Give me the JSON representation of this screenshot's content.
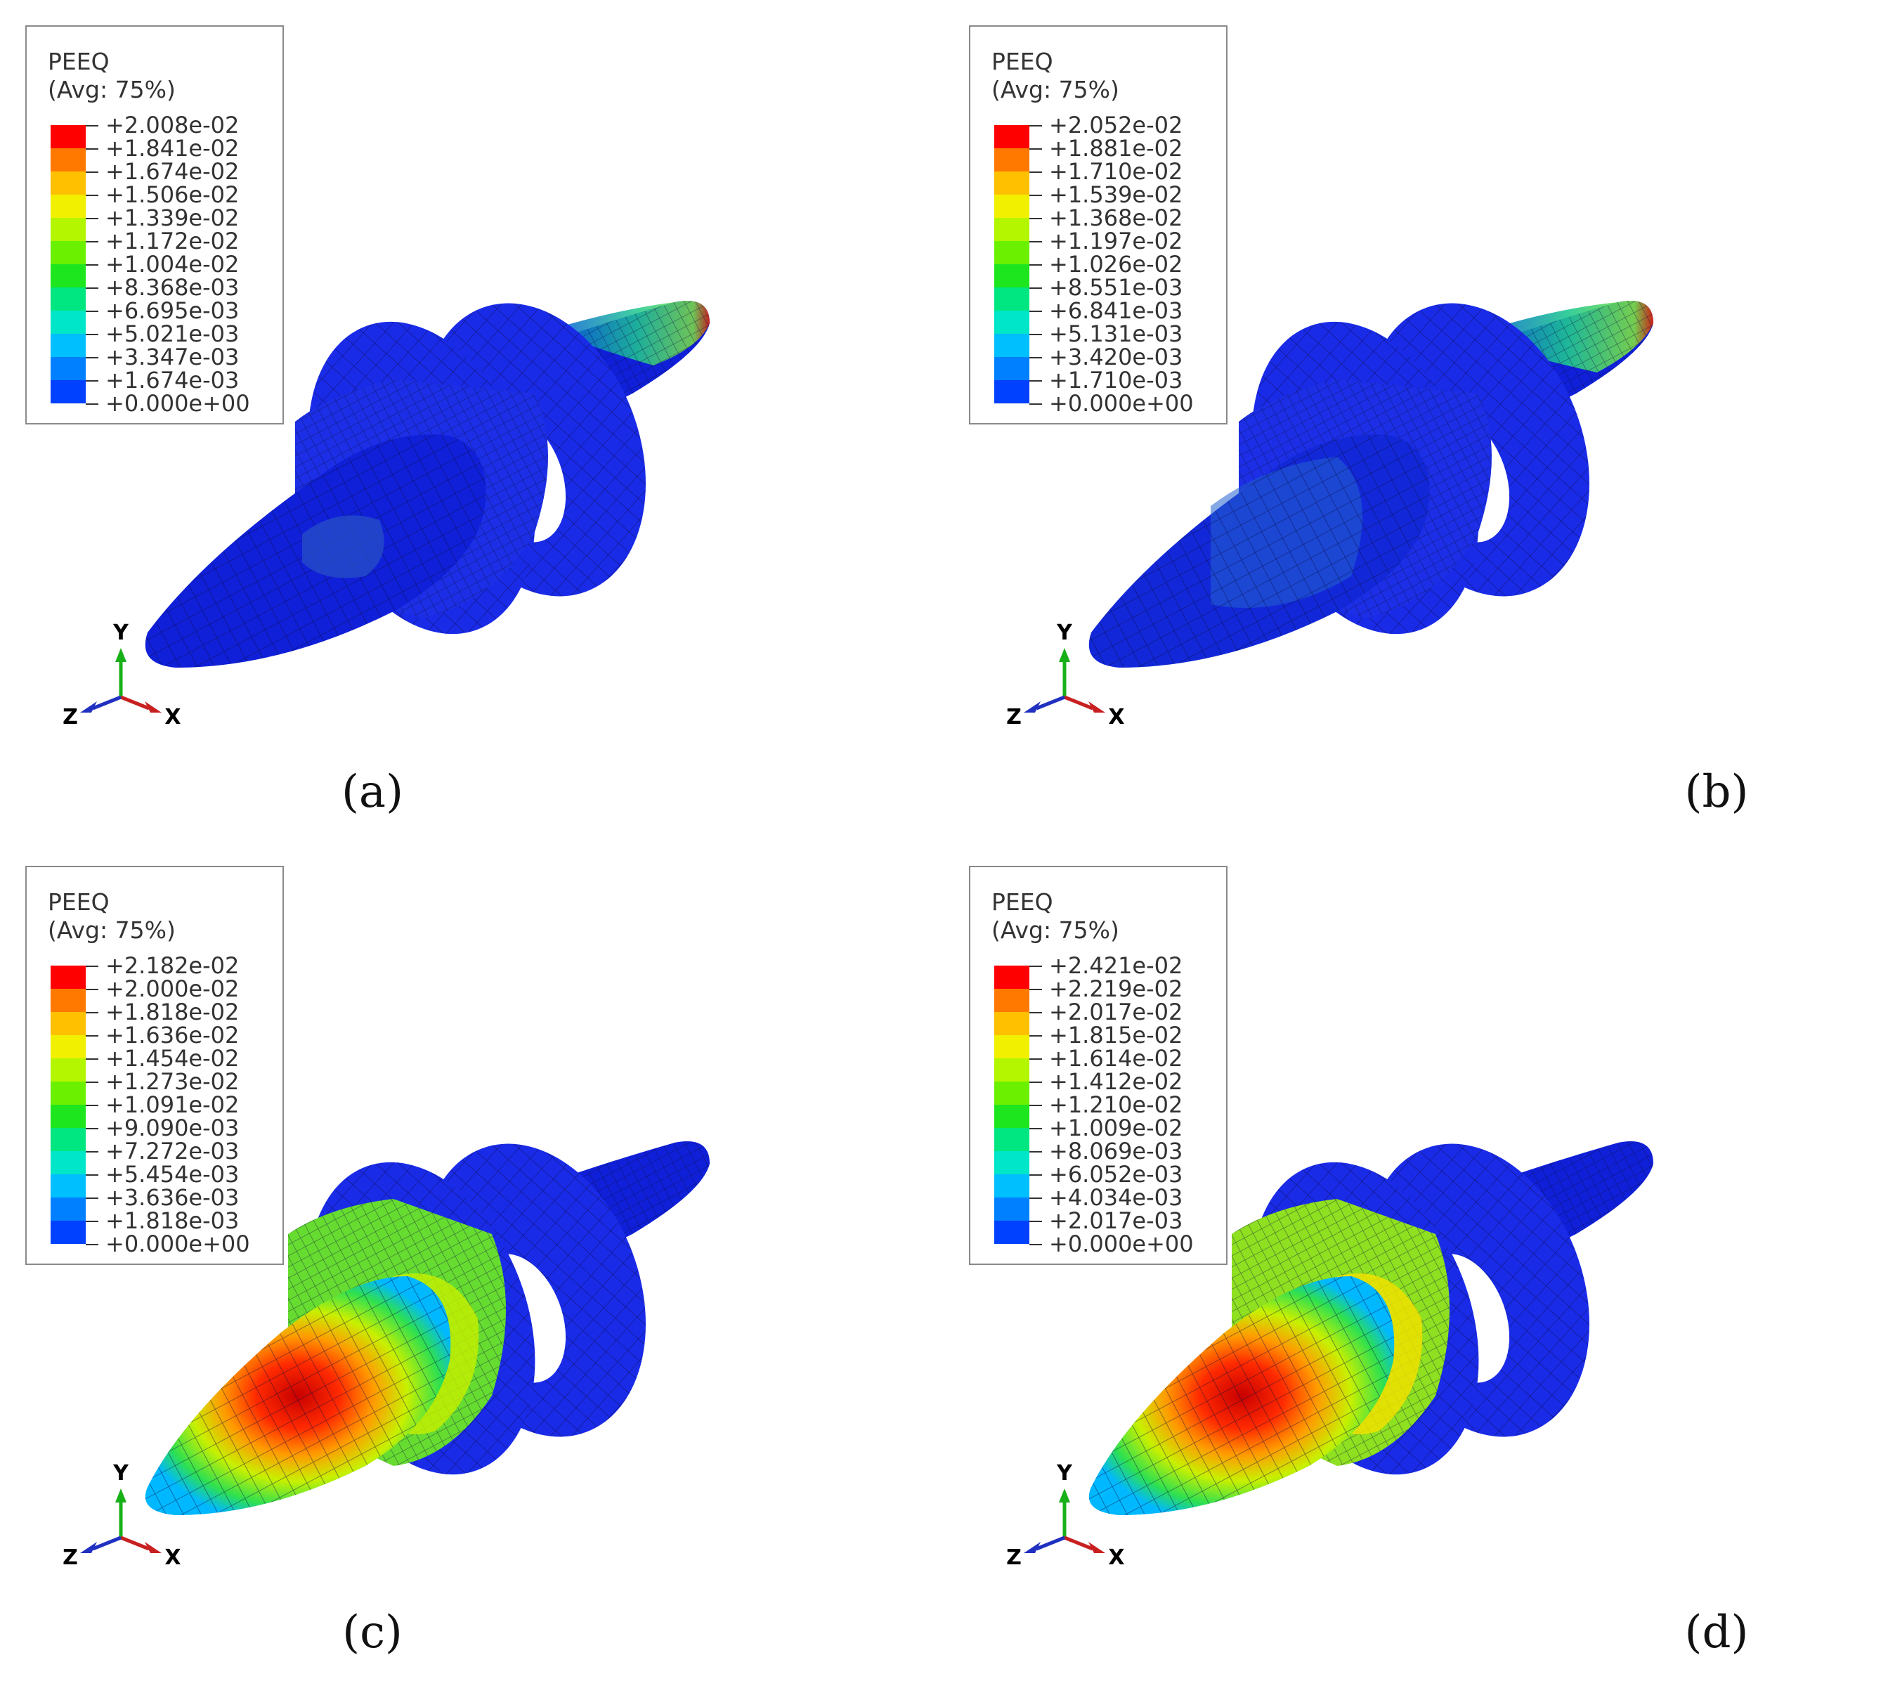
{
  "colormap": [
    "#0000ff",
    "#0040ff",
    "#0080ff",
    "#00bfff",
    "#00e6c8",
    "#00e680",
    "#1ee61e",
    "#6bf000",
    "#b4f500",
    "#f0f000",
    "#ffc000",
    "#ff7800",
    "#ff0000"
  ],
  "panels": [
    {
      "caption": "(a)",
      "legend": {
        "title": "PEEQ",
        "subtitle": "(Avg: 75%)",
        "values": [
          "+2.008e-02",
          "+1.841e-02",
          "+1.674e-02",
          "+1.506e-02",
          "+1.339e-02",
          "+1.172e-02",
          "+1.004e-02",
          "+8.368e-03",
          "+6.695e-03",
          "+5.021e-03",
          "+3.347e-03",
          "+1.674e-03",
          "+0.000e+00"
        ]
      },
      "triad": {
        "y": "Y",
        "z": "Z",
        "x": "X"
      }
    },
    {
      "caption": "(b)",
      "legend": {
        "title": "PEEQ",
        "subtitle": "(Avg: 75%)",
        "values": [
          "+2.052e-02",
          "+1.881e-02",
          "+1.710e-02",
          "+1.539e-02",
          "+1.368e-02",
          "+1.197e-02",
          "+1.026e-02",
          "+8.551e-03",
          "+6.841e-03",
          "+5.131e-03",
          "+3.420e-03",
          "+1.710e-03",
          "+0.000e+00"
        ]
      },
      "triad": {
        "y": "Y",
        "z": "Z",
        "x": "X"
      }
    },
    {
      "caption": "(c)",
      "legend": {
        "title": "PEEQ",
        "subtitle": "(Avg: 75%)",
        "values": [
          "+2.182e-02",
          "+2.000e-02",
          "+1.818e-02",
          "+1.636e-02",
          "+1.454e-02",
          "+1.273e-02",
          "+1.091e-02",
          "+9.090e-03",
          "+7.272e-03",
          "+5.454e-03",
          "+3.636e-03",
          "+1.818e-03",
          "+0.000e+00"
        ]
      },
      "triad": {
        "y": "Y",
        "z": "Z",
        "x": "X"
      }
    },
    {
      "caption": "(d)",
      "legend": {
        "title": "PEEQ",
        "subtitle": "(Avg: 75%)",
        "values": [
          "+2.421e-02",
          "+2.219e-02",
          "+2.017e-02",
          "+1.815e-02",
          "+1.614e-02",
          "+1.412e-02",
          "+1.210e-02",
          "+1.009e-02",
          "+8.069e-03",
          "+6.052e-03",
          "+4.034e-03",
          "+2.017e-03",
          "+0.000e+00"
        ]
      },
      "triad": {
        "y": "Y",
        "z": "Z",
        "x": "X"
      }
    }
  ]
}
